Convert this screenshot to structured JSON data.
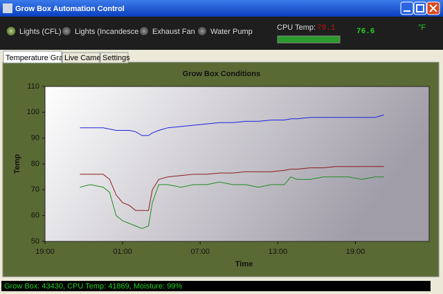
{
  "window": {
    "title": "Grow Box Automation Control"
  },
  "indicators": [
    {
      "label": "Lights (CFL)",
      "on": true
    },
    {
      "label": "Lights (Incandescent)",
      "on": false
    },
    {
      "label": "Exhaust Fan",
      "on": false
    },
    {
      "label": "Water Pump",
      "on": false
    }
  ],
  "cpu": {
    "label": "CPU Temp:",
    "value": "79.1"
  },
  "temperature": {
    "value": "76.6",
    "unit": "°F"
  },
  "tabs": [
    "Temperature Graph",
    "Live Camera",
    "Settings"
  ],
  "status": "Grow Box: 43430, CPU Temp: 41869, Moisture: 99%",
  "chart_data": {
    "type": "line",
    "title": "Grow Box Conditions",
    "x_label": "Time",
    "y_label": "Temp",
    "xlim": [
      19,
      48.7
    ],
    "xticks": [
      {
        "value": 19,
        "label": "19:00"
      },
      {
        "value": 25,
        "label": "01:00"
      },
      {
        "value": 31,
        "label": "07:00"
      },
      {
        "value": 37,
        "label": "13:00"
      },
      {
        "value": 43,
        "label": "19:00"
      }
    ],
    "ylim": [
      50,
      110
    ],
    "yticks": [
      50,
      60,
      70,
      80,
      90,
      100,
      110
    ],
    "x": [
      21.7,
      22.5,
      23.5,
      24.0,
      24.5,
      25.0,
      25.5,
      26.0,
      26.5,
      27.0,
      27.3,
      27.8,
      28.5,
      29.5,
      30.5,
      31.5,
      32.5,
      33.5,
      34.5,
      35.5,
      36.5,
      37.5,
      38.0,
      38.5,
      39.5,
      40.5,
      41.5,
      42.5,
      43.5,
      44.5,
      45.2
    ],
    "series": [
      {
        "color": "#1f1fe0",
        "values": [
          94,
          94,
          94,
          93.5,
          93,
          93,
          93,
          92.5,
          91,
          91,
          92,
          93,
          94,
          94.5,
          95,
          95.5,
          96,
          96,
          96.5,
          96.5,
          97,
          97,
          97.5,
          97.5,
          98,
          98,
          98,
          98,
          98,
          98,
          99
        ]
      },
      {
        "color": "#8b1a1a",
        "values": [
          76,
          76,
          76,
          74,
          68,
          65,
          64,
          62,
          62,
          62,
          70,
          74,
          75,
          75.5,
          76,
          76,
          76.5,
          76.5,
          77,
          77,
          77,
          77.5,
          78,
          78,
          78.5,
          78.5,
          79,
          79,
          79,
          79,
          79
        ]
      },
      {
        "color": "#1e8c1e",
        "values": [
          71,
          72,
          71,
          69,
          60,
          58,
          57,
          56,
          55,
          56,
          65,
          72,
          72,
          71,
          72,
          72,
          73,
          72,
          72,
          71,
          72,
          72,
          75,
          74,
          74,
          75,
          75,
          75,
          74,
          75,
          75
        ]
      }
    ]
  }
}
